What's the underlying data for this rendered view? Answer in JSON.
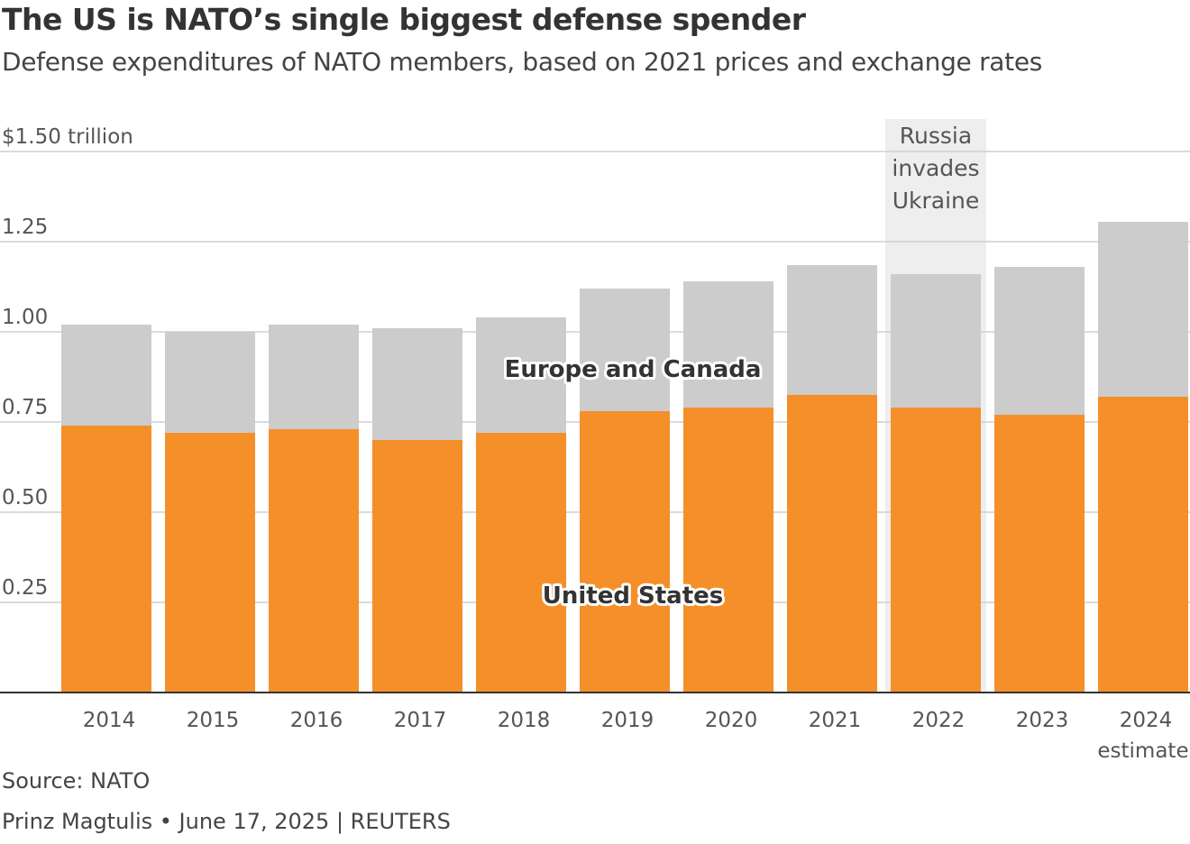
{
  "title": "The US is NATO’s single biggest defense spender",
  "subtitle": "Defense expenditures of NATO members, based on 2021 prices and exchange rates",
  "source": "Source: NATO",
  "byline": "Prinz Magtulis • June 17, 2025 | REUTERS",
  "chart_data": {
    "type": "bar",
    "stacked": true,
    "categories": [
      "2014",
      "2015",
      "2016",
      "2017",
      "2018",
      "2019",
      "2020",
      "2021",
      "2022",
      "2023",
      "2024"
    ],
    "category_sublabels": {
      "2024": "estimate"
    },
    "series": [
      {
        "name": "United States",
        "color": "#f58f29",
        "values": [
          0.74,
          0.72,
          0.73,
          0.7,
          0.72,
          0.78,
          0.79,
          0.825,
          0.79,
          0.77,
          0.82
        ]
      },
      {
        "name": "Europe and Canada",
        "color": "#cccccc",
        "values": [
          0.28,
          0.28,
          0.29,
          0.31,
          0.32,
          0.34,
          0.35,
          0.36,
          0.37,
          0.41,
          0.485
        ]
      }
    ],
    "ylim": [
      0,
      1.5
    ],
    "yticks": [
      0.25,
      0.5,
      0.75,
      1.0,
      1.25,
      1.5
    ],
    "ytick_labels": [
      "0.25",
      "0.50",
      "0.75",
      "1.00",
      "1.25",
      "$1.50 trillion"
    ],
    "grid": true,
    "annotation": {
      "category": "2022",
      "lines": [
        "Russia",
        "invades",
        "Ukraine"
      ],
      "band_color": "#eeeeee"
    }
  }
}
